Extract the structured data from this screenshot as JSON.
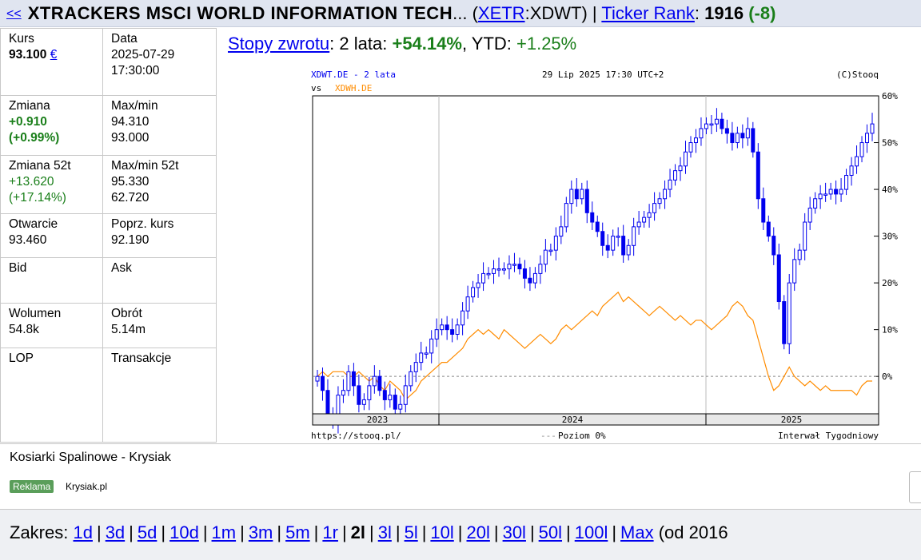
{
  "header": {
    "back": "<<",
    "name": "XTRACKERS MSCI WORLD INFORMATION TECH",
    "ellipsis": "...",
    "exchange": "XETR",
    "symbol": "XDWT",
    "ticker_rank_label": "Ticker Rank",
    "rank": "1916",
    "rank_change": "(-8)"
  },
  "info": {
    "kurs_label": "Kurs",
    "kurs_value": "93.100",
    "currency": "€",
    "data_label": "Data",
    "date": "2025-07-29",
    "time": "17:30:00",
    "zmiana_label": "Zmiana",
    "zmiana_value": "+0.910",
    "zmiana_pct": "(+0.99%)",
    "maxmin_label": "Max/min",
    "max": "94.310",
    "min": "93.000",
    "zmiana52_label": "Zmiana 52t",
    "zmiana52_value": "+13.620",
    "zmiana52_pct": "(+17.14%)",
    "maxmin52_label": "Max/min 52t",
    "max52": "95.330",
    "min52": "62.720",
    "otwarcie_label": "Otwarcie",
    "otwarcie_value": "93.460",
    "poprz_label": "Poprz. kurs",
    "poprz_value": "92.190",
    "bid_label": "Bid",
    "ask_label": "Ask",
    "wolumen_label": "Wolumen",
    "wolumen_value": "54.8k",
    "obrot_label": "Obrót",
    "obrot_value": "5.14m",
    "lop_label": "LOP",
    "transakcje_label": "Transakcje"
  },
  "returns": {
    "label": "Stopy zwrotu",
    "period": "2 lata",
    "period_value": "+54.14%",
    "ytd_label": "YTD",
    "ytd_value": "+1.25%"
  },
  "chart_data": {
    "type": "line",
    "title_left": "XDWT.DE - 2 lata",
    "title_vs": "vs",
    "compare_name": "XDWH.DE",
    "title_center": "29 Lip 2025 17:30 UTC+2",
    "copyright": "(C)Stooq",
    "footer_left": "https://stooq.pl/",
    "footer_center": "Poziom 0%",
    "footer_right": "Interwał Tygodniowy",
    "x_ticks": [
      "2023",
      "2024",
      "2025"
    ],
    "y_ticks": [
      "60%",
      "50%",
      "40%",
      "30%",
      "20%",
      "10%",
      "0%"
    ],
    "y_tick_values": [
      60,
      50,
      40,
      30,
      20,
      10,
      0
    ],
    "ylim": [
      -8,
      60
    ],
    "series": [
      {
        "name": "XDWT.DE",
        "color": "#0000ee",
        "style": "candlestick",
        "values": [
          0,
          -3,
          -8,
          -10,
          -4,
          -3,
          1,
          -2,
          -6,
          -5,
          -2,
          0,
          -3,
          -5,
          -4,
          -7,
          -6,
          -2,
          1,
          3,
          5,
          5,
          8,
          10,
          11,
          10,
          9,
          11,
          14,
          17,
          19,
          20,
          22,
          22,
          23,
          23,
          23,
          24,
          24,
          23,
          21,
          20,
          22,
          24,
          27,
          27,
          30,
          32,
          37,
          40,
          38,
          40,
          35,
          33,
          31,
          28,
          27,
          30,
          30,
          26,
          28,
          32,
          33,
          34,
          35,
          37,
          38,
          40,
          42,
          44,
          45,
          48,
          50,
          51,
          53,
          54,
          54,
          55,
          53,
          52,
          50,
          52,
          51,
          53,
          48,
          38,
          33,
          30,
          26,
          16,
          7,
          20,
          25,
          27,
          33,
          36,
          38,
          39,
          39,
          40,
          39,
          40,
          43,
          45,
          47,
          50,
          52,
          54
        ]
      },
      {
        "name": "XDWH.DE",
        "color": "#ff8c00",
        "style": "line",
        "values": [
          0,
          1,
          0,
          1,
          1,
          1,
          0,
          0,
          1,
          0,
          -1,
          0,
          -2,
          -3,
          -1,
          -2,
          -3,
          -5,
          -4,
          -3,
          -1,
          0,
          1,
          2,
          3,
          3,
          4,
          5,
          6,
          8,
          9,
          10,
          9,
          10,
          9,
          8,
          10,
          9,
          8,
          7,
          6,
          7,
          8,
          9,
          8,
          7,
          8,
          10,
          11,
          10,
          11,
          12,
          13,
          14,
          13,
          15,
          16,
          17,
          18,
          16,
          17,
          16,
          15,
          14,
          13,
          14,
          15,
          14,
          13,
          12,
          13,
          12,
          11,
          12,
          12,
          11,
          10,
          11,
          12,
          13,
          15,
          16,
          15,
          13,
          12,
          8,
          4,
          0,
          -3,
          -2,
          0,
          2,
          0,
          -1,
          -2,
          -1,
          -2,
          -3,
          -2,
          -3,
          -3,
          -3,
          -3,
          -3,
          -4,
          -2,
          -1,
          -1
        ]
      }
    ],
    "baseline": 0
  },
  "ad": {
    "title": "Kosiarki Spalinowe - Krysiak",
    "badge": "Reklama",
    "domain": "Krysiak.pl"
  },
  "range": {
    "label": "Zakres:",
    "items": [
      "1d",
      "3d",
      "5d",
      "10d",
      "1m",
      "3m",
      "5m",
      "1r",
      "2l",
      "3l",
      "5l",
      "10l",
      "20l",
      "30l",
      "50l",
      "100l",
      "Max"
    ],
    "current": "2l",
    "since": "(od 2016"
  }
}
